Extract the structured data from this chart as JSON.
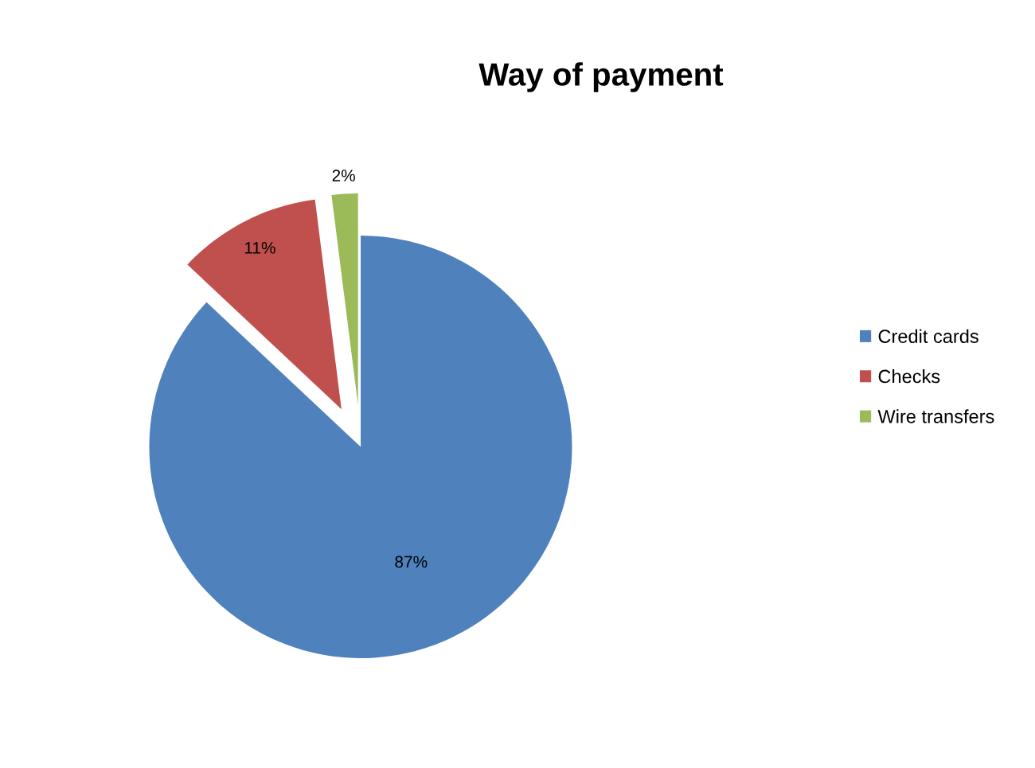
{
  "chart_data": {
    "type": "pie",
    "title": "Way of payment",
    "categories": [
      "Credit cards",
      "Checks",
      "Wire transfers"
    ],
    "values": [
      87,
      11,
      2
    ],
    "colors": [
      "#4f81bd",
      "#c0504d",
      "#9bbb59"
    ],
    "value_labels": [
      "87%",
      "11%",
      "2%"
    ],
    "legend": "right"
  }
}
